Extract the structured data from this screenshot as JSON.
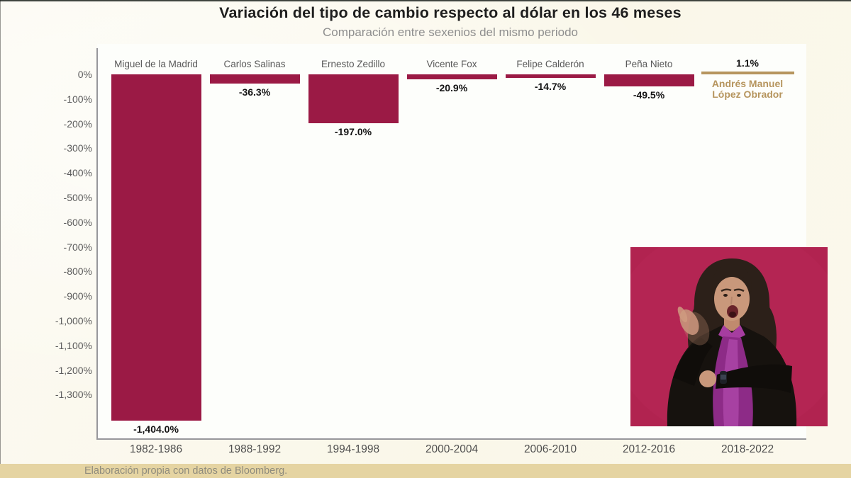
{
  "chart_data": {
    "type": "bar",
    "title": "Variación del tipo de cambio respecto al dólar en los 46 meses",
    "subtitle": "Comparación entre sexenios del mismo periodo",
    "categories": [
      "1982-1986",
      "1988-1992",
      "1994-1998",
      "2000-2004",
      "2006-2010",
      "2012-2016",
      "2018-2022"
    ],
    "presidents": [
      "Miguel de la Madrid",
      "Carlos Salinas",
      "Ernesto Zedillo",
      "Vicente Fox",
      "Felipe Calderón",
      "Peña Nieto",
      "Andrés Manuel López Obrador"
    ],
    "values": [
      -1404.0,
      -36.3,
      -197.0,
      -20.9,
      -14.7,
      -49.5,
      1.1
    ],
    "value_labels": [
      "-1,404.0%",
      "-36.3%",
      "-197.0%",
      "-20.9%",
      "-14.7%",
      "-49.5%",
      "1.1%"
    ],
    "ytick_labels": [
      "0%",
      "-100%",
      "-200%",
      "-300%",
      "-400%",
      "-500%",
      "-600%",
      "-700%",
      "-800%",
      "-900%",
      "-1,000%",
      "-1,100%",
      "-1,200%",
      "-1,300%"
    ],
    "ylim": [
      -1450,
      50
    ],
    "grid": false,
    "legend": null,
    "bar_color": "#9b1a45",
    "highlight_color": "#b6955e",
    "highlight_index": 6,
    "president_label_color": "#595959",
    "value_label_color": "#141414"
  },
  "footer": {
    "source_text": "Elaboración propia con datos de Bloomberg.",
    "bar_color": "#e5d4a2"
  }
}
